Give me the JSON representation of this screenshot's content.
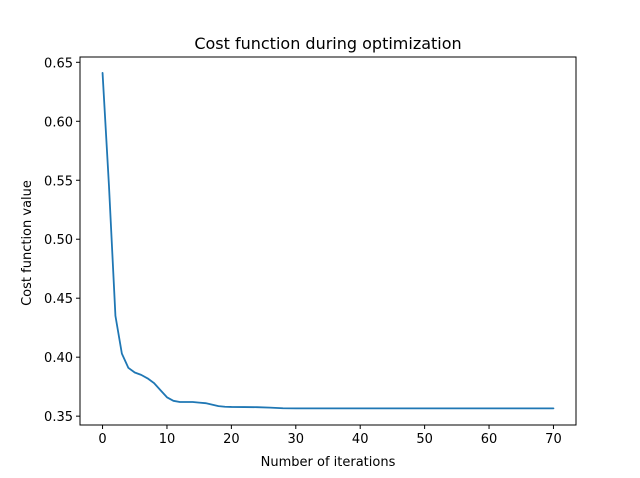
{
  "chart_data": {
    "type": "line",
    "title": "Cost function during optimization",
    "xlabel": "Number of iterations",
    "ylabel": "Cost function value",
    "xlim": [
      -3.5,
      73.5
    ],
    "ylim": [
      0.3425,
      0.6545
    ],
    "xticks": [
      0,
      10,
      20,
      30,
      40,
      50,
      60,
      70
    ],
    "xtick_labels": [
      "0",
      "10",
      "20",
      "30",
      "40",
      "50",
      "60",
      "70"
    ],
    "yticks": [
      0.35,
      0.4,
      0.45,
      0.5,
      0.55,
      0.6,
      0.65
    ],
    "ytick_labels": [
      "0.35",
      "0.40",
      "0.45",
      "0.50",
      "0.55",
      "0.60",
      "0.65"
    ],
    "grid": false,
    "legend": false,
    "series": [
      {
        "color": "#1f77b4",
        "x": [
          0,
          1,
          2,
          3,
          4,
          5,
          6,
          7,
          8,
          9,
          10,
          11,
          12,
          13,
          14,
          15,
          16,
          17,
          18,
          19,
          20,
          22,
          24,
          26,
          28,
          30,
          35,
          40,
          45,
          50,
          55,
          60,
          65,
          70
        ],
        "y": [
          0.641,
          0.545,
          0.435,
          0.403,
          0.391,
          0.387,
          0.385,
          0.382,
          0.378,
          0.372,
          0.366,
          0.363,
          0.362,
          0.362,
          0.362,
          0.3615,
          0.361,
          0.3598,
          0.3585,
          0.358,
          0.3578,
          0.3577,
          0.3576,
          0.3572,
          0.3567,
          0.3566,
          0.3566,
          0.3566,
          0.3566,
          0.3566,
          0.3566,
          0.3566,
          0.3566,
          0.3566
        ]
      }
    ]
  }
}
